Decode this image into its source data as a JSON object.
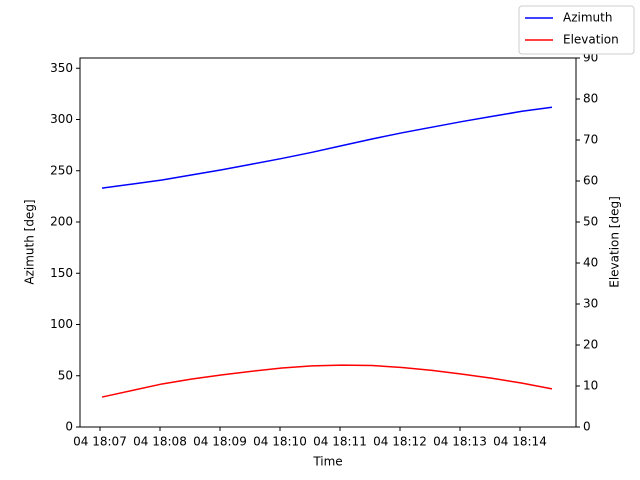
{
  "chart_data": {
    "type": "line",
    "x": [
      "04 18:07:02",
      "04 18:07:32",
      "04 18:08:02",
      "04 18:08:32",
      "04 18:09:02",
      "04 18:09:32",
      "04 18:10:02",
      "04 18:10:32",
      "04 18:11:02",
      "04 18:11:32",
      "04 18:12:02",
      "04 18:12:32",
      "04 18:13:02",
      "04 18:13:32",
      "04 18:14:02",
      "04 18:14:32"
    ],
    "series": [
      {
        "name": "Azimuth",
        "color": "#0000ff",
        "values": [
          233,
          237,
          241,
          246,
          251,
          256.5,
          262,
          268,
          274.5,
          281,
          287,
          292.5,
          298,
          303,
          308,
          312
        ]
      },
      {
        "name": "Elevation",
        "color": "#ff0000",
        "axis": "y2",
        "values": [
          7.3,
          8.9,
          10.5,
          11.7,
          12.7,
          13.6,
          14.4,
          14.9,
          15.1,
          15.0,
          14.5,
          13.8,
          12.9,
          11.9,
          10.7,
          9.3
        ]
      }
    ],
    "xlabel": "Time",
    "ylabel": "Azimuth [deg]",
    "y2label": "Elevation [deg]",
    "xlim": [
      "04 18:06:40",
      "04 18:14:56"
    ],
    "xticks": [
      {
        "value": "04 18:07:00",
        "label": "04 18:07"
      },
      {
        "value": "04 18:08:00",
        "label": "04 18:08"
      },
      {
        "value": "04 18:09:00",
        "label": "04 18:09"
      },
      {
        "value": "04 18:10:00",
        "label": "04 18:10"
      },
      {
        "value": "04 18:11:00",
        "label": "04 18:11"
      },
      {
        "value": "04 18:12:00",
        "label": "04 18:12"
      },
      {
        "value": "04 18:13:00",
        "label": "04 18:13"
      },
      {
        "value": "04 18:14:00",
        "label": "04 18:14"
      }
    ],
    "ylim": [
      0,
      360
    ],
    "yticks": [
      0,
      50,
      100,
      150,
      200,
      250,
      300,
      350
    ],
    "y2lim": [
      0,
      90
    ],
    "y2ticks": [
      0,
      10,
      20,
      30,
      40,
      50,
      60,
      70,
      80,
      90
    ],
    "legend": "upper right"
  }
}
